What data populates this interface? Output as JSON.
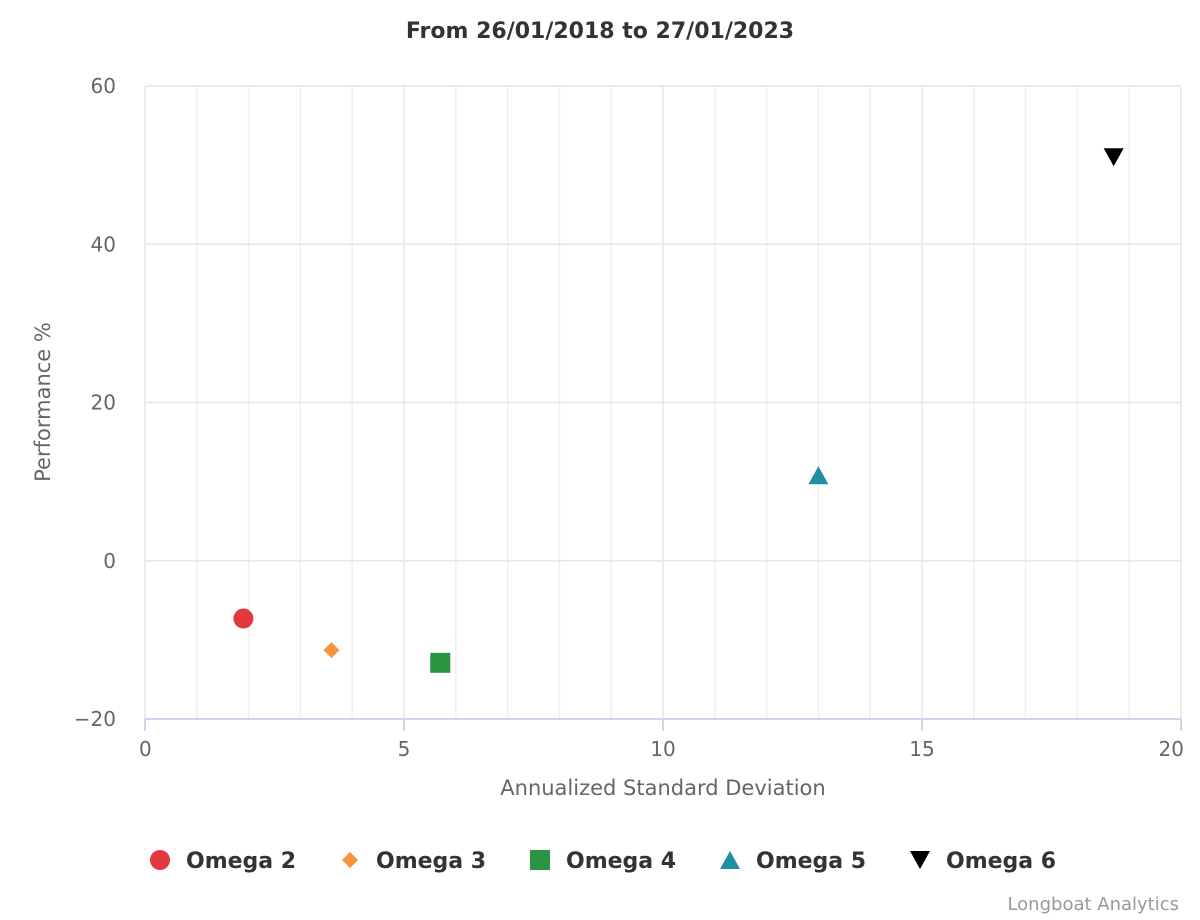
{
  "chart_data": {
    "type": "scatter",
    "title": "From 26/01/2018 to 27/01/2023",
    "xlabel": "Annualized Standard Deviation",
    "ylabel": "Performance %",
    "xlim": [
      0,
      20
    ],
    "ylim": [
      -20,
      60
    ],
    "x_ticks": [
      0,
      5,
      10,
      15,
      20
    ],
    "y_ticks": [
      -20,
      0,
      20,
      40,
      60
    ],
    "x_tick_labels": [
      "0",
      "5",
      "10",
      "15",
      "20"
    ],
    "y_tick_labels": [
      "−20",
      "0",
      "20",
      "40",
      "60"
    ],
    "grid": true,
    "legend_position": "bottom",
    "series": [
      {
        "name": "Omega 2",
        "marker": "circle",
        "color": "#e0383e",
        "points": [
          {
            "x": 1.9,
            "y": -7.3
          }
        ]
      },
      {
        "name": "Omega 3",
        "marker": "diamond",
        "color": "#f7943a",
        "points": [
          {
            "x": 3.6,
            "y": -11.3
          }
        ]
      },
      {
        "name": "Omega 4",
        "marker": "square",
        "color": "#2a9440",
        "points": [
          {
            "x": 5.7,
            "y": -12.9
          }
        ]
      },
      {
        "name": "Omega 5",
        "marker": "triangle",
        "color": "#1d8ea3",
        "points": [
          {
            "x": 13.0,
            "y": 10.8
          }
        ]
      },
      {
        "name": "Omega 6",
        "marker": "triangle-down",
        "color": "#000000",
        "points": [
          {
            "x": 18.7,
            "y": 51.0
          }
        ]
      }
    ]
  },
  "credits": "Longboat Analytics"
}
